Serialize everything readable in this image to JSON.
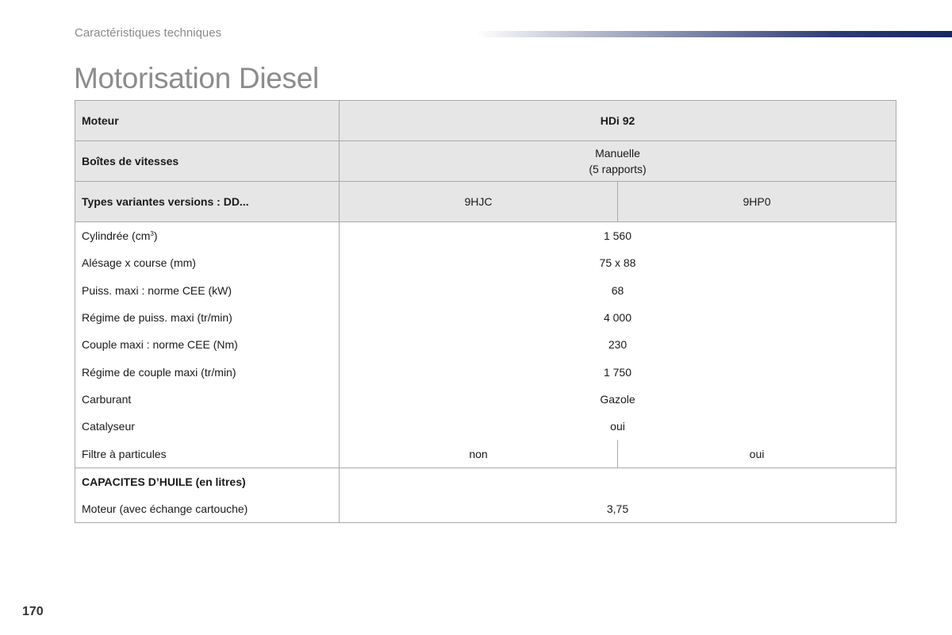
{
  "header": {
    "section": "Caractéristiques techniques",
    "title": "Motorisation Diesel"
  },
  "table": {
    "engine_label": "Moteur",
    "engine_value": "HDi 92",
    "gearbox_label": "Boîtes de vitesses",
    "gearbox_value_line1": "Manuelle",
    "gearbox_value_line2": "(5 rapports)",
    "variants_label": "Types variantes versions : DD...",
    "variants": [
      "9HJC",
      "9HP0"
    ],
    "rows": [
      {
        "label": "Cylindrée (cm",
        "label_sup": "3",
        "label_end": ")",
        "value": "1 560"
      },
      {
        "label": "Alésage x course (mm)",
        "value": "75 x 88"
      },
      {
        "label": "Puiss. maxi : norme CEE (kW)",
        "value": "68"
      },
      {
        "label": "Régime de puiss. maxi (tr/min)",
        "value": "4 000"
      },
      {
        "label": "Couple maxi : norme CEE (Nm)",
        "value": "230"
      },
      {
        "label": "Régime de couple maxi (tr/min)",
        "value": "1 750"
      },
      {
        "label": "Carburant",
        "value": "Gazole"
      },
      {
        "label": "Catalyseur",
        "value": "oui"
      },
      {
        "label": "Filtre à particules",
        "values": [
          "non",
          "oui"
        ]
      }
    ],
    "oil_heading": "CAPACITES D’HUILE (en litres)",
    "oil_row": {
      "label": "Moteur (avec échange cartouche)",
      "value": "3,75"
    }
  },
  "footer": {
    "page_number": "170"
  }
}
